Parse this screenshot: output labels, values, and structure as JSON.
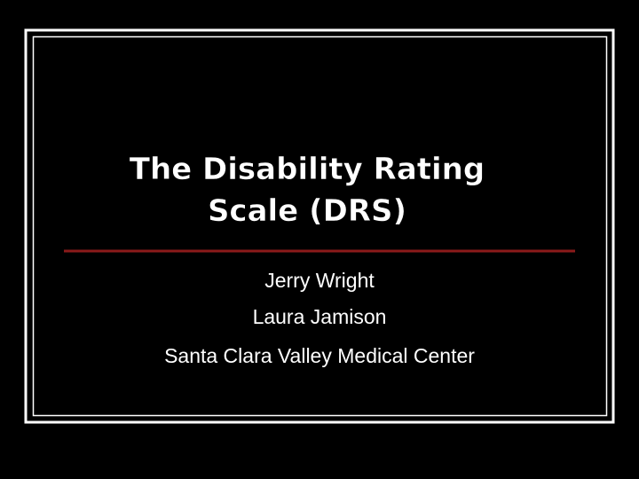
{
  "slide": {
    "title": [
      "The Disability Rating",
      "Scale (DRS)"
    ],
    "subtitle": [
      "Jerry Wright",
      "Laura Jamison",
      "Santa Clara Valley Medical Center"
    ]
  }
}
